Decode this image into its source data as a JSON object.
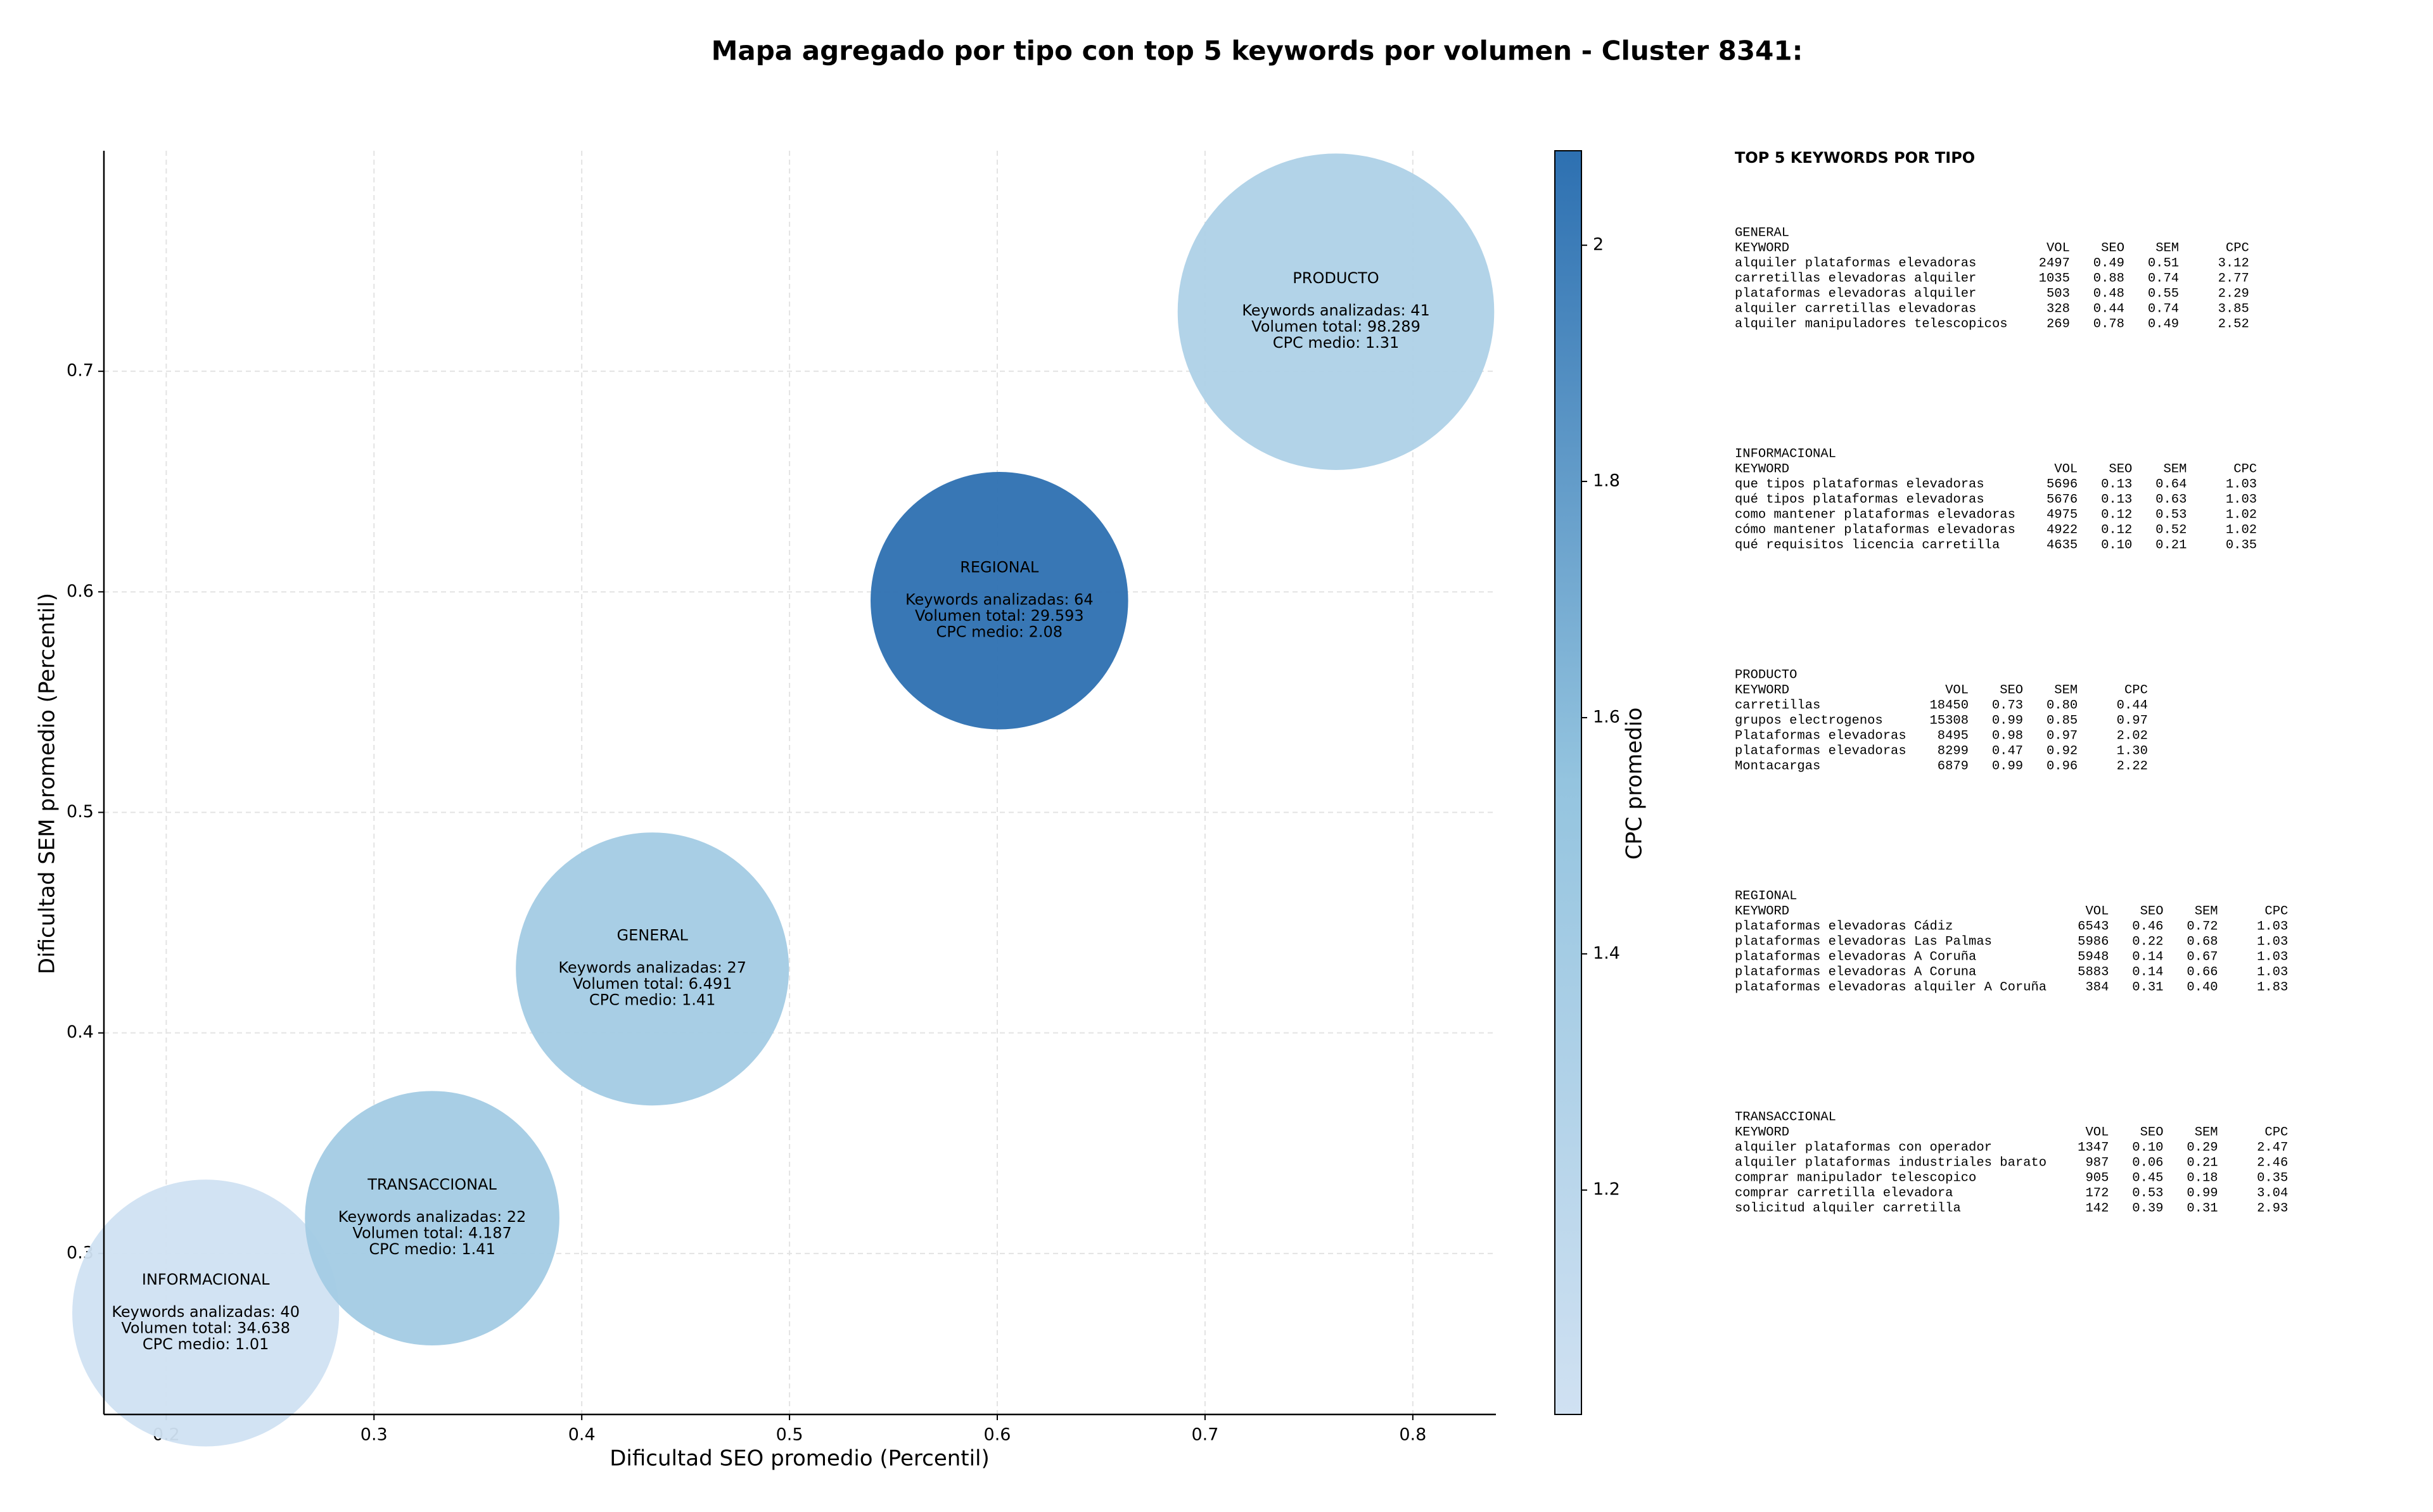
{
  "chart_data": {
    "type": "bubble",
    "title": "Mapa agregado por tipo con top 5 keywords por volumen - Cluster 8341:",
    "x_label": "Dificultad SEO promedio (Percentil)",
    "y_label": "Dificultad SEM promedio (Percentil)",
    "categories": [
      "INFORMACIONAL",
      "TRANSACCIONAL",
      "GENERAL",
      "REGIONAL",
      "PRODUCTO"
    ],
    "x": [
      0.219,
      0.328,
      0.434,
      0.601,
      0.763
    ],
    "values": [
      0.273,
      0.316,
      0.429,
      0.596,
      0.727
    ],
    "sizes": [
      86,
      82,
      88,
      83,
      102
    ],
    "cpc": [
      1.01,
      1.41,
      1.41,
      2.08,
      1.31
    ],
    "details": [
      [
        "Keywords analizadas: 40",
        "Volumen total: 34.638",
        "CPC medio: 1.01"
      ],
      [
        "Keywords analizadas: 22",
        "Volumen total: 4.187",
        "CPC medio: 1.41"
      ],
      [
        "Keywords analizadas: 27",
        "Volumen total: 6.491",
        "CPC medio: 1.41"
      ],
      [
        "Keywords analizadas: 64",
        "Volumen total: 29.593",
        "CPC medio: 2.08"
      ],
      [
        "Keywords analizadas: 41",
        "Volumen total: 98.289",
        "CPC medio: 1.31"
      ]
    ],
    "xlim": [
      0.17,
      0.84
    ],
    "xticks": [
      0.2,
      0.3,
      0.4,
      0.5,
      0.6,
      0.7,
      0.8
    ],
    "ylim": [
      0.227,
      0.8
    ],
    "yticks": [
      0.3,
      0.4,
      0.5,
      0.6,
      0.7
    ],
    "grid": true,
    "colorbar": {
      "label": "CPC promedio",
      "lim": [
        1.01,
        2.08
      ],
      "ticks": [
        1.2,
        1.4,
        1.6,
        1.8,
        2.0
      ],
      "colors": [
        "#d0e1f2",
        "#94c4df",
        "#2d70b1"
      ]
    }
  },
  "side_panel": {
    "title": "TOP 5 KEYWORDS POR TIPO",
    "tables": [
      {
        "name": "GENERAL",
        "header": [
          "KEYWORD",
          "VOL",
          "SEO",
          "SEM",
          "CPC"
        ],
        "rows": [
          [
            "alquiler plataformas elevadoras",
            "2497",
            "0.49",
            "0.51",
            "3.12"
          ],
          [
            "carretillas elevadoras alquiler",
            "1035",
            "0.88",
            "0.74",
            "2.77"
          ],
          [
            "plataformas elevadoras alquiler",
            "503",
            "0.48",
            "0.55",
            "2.29"
          ],
          [
            "alquiler carretillas elevadoras",
            "328",
            "0.44",
            "0.74",
            "3.85"
          ],
          [
            "alquiler manipuladores telescopicos",
            "269",
            "0.78",
            "0.49",
            "2.52"
          ]
        ]
      },
      {
        "name": "INFORMACIONAL",
        "header": [
          "KEYWORD",
          "VOL",
          "SEO",
          "SEM",
          "CPC"
        ],
        "rows": [
          [
            "que tipos plataformas elevadoras",
            "5696",
            "0.13",
            "0.64",
            "1.03"
          ],
          [
            "qué tipos plataformas elevadoras",
            "5676",
            "0.13",
            "0.63",
            "1.03"
          ],
          [
            "como mantener plataformas elevadoras",
            "4975",
            "0.12",
            "0.53",
            "1.02"
          ],
          [
            "cómo mantener plataformas elevadoras",
            "4922",
            "0.12",
            "0.52",
            "1.02"
          ],
          [
            "qué requisitos licencia carretilla",
            "4635",
            "0.10",
            "0.21",
            "0.35"
          ]
        ]
      },
      {
        "name": "PRODUCTO",
        "header": [
          "KEYWORD",
          "VOL",
          "SEO",
          "SEM",
          "CPC"
        ],
        "rows": [
          [
            "carretillas",
            "18450",
            "0.73",
            "0.80",
            "0.44"
          ],
          [
            "grupos electrogenos",
            "15308",
            "0.99",
            "0.85",
            "0.97"
          ],
          [
            "Plataformas elevadoras",
            "8495",
            "0.98",
            "0.97",
            "2.02"
          ],
          [
            "plataformas elevadoras",
            "8299",
            "0.47",
            "0.92",
            "1.30"
          ],
          [
            "Montacargas",
            "6879",
            "0.99",
            "0.96",
            "2.22"
          ]
        ]
      },
      {
        "name": "REGIONAL",
        "header": [
          "KEYWORD",
          "VOL",
          "SEO",
          "SEM",
          "CPC"
        ],
        "rows": [
          [
            "plataformas elevadoras Cádiz",
            "6543",
            "0.46",
            "0.72",
            "1.03"
          ],
          [
            "plataformas elevadoras Las Palmas",
            "5986",
            "0.22",
            "0.68",
            "1.03"
          ],
          [
            "plataformas elevadoras A Coruña",
            "5948",
            "0.14",
            "0.67",
            "1.03"
          ],
          [
            "plataformas elevadoras A Coruna",
            "5883",
            "0.14",
            "0.66",
            "1.03"
          ],
          [
            "plataformas elevadoras alquiler A Coruña",
            "384",
            "0.31",
            "0.40",
            "1.83"
          ]
        ]
      },
      {
        "name": "TRANSACCIONAL",
        "header": [
          "KEYWORD",
          "VOL",
          "SEO",
          "SEM",
          "CPC"
        ],
        "rows": [
          [
            "alquiler plataformas con operador",
            "1347",
            "0.10",
            "0.29",
            "2.47"
          ],
          [
            "alquiler plataformas industriales barato",
            "987",
            "0.06",
            "0.21",
            "2.46"
          ],
          [
            "comprar manipulador telescopico",
            "905",
            "0.45",
            "0.18",
            "0.35"
          ],
          [
            "comprar carretilla elevadora",
            "172",
            "0.53",
            "0.99",
            "3.04"
          ],
          [
            "solicitud alquiler carretilla",
            "142",
            "0.39",
            "0.31",
            "2.93"
          ]
        ]
      }
    ]
  }
}
